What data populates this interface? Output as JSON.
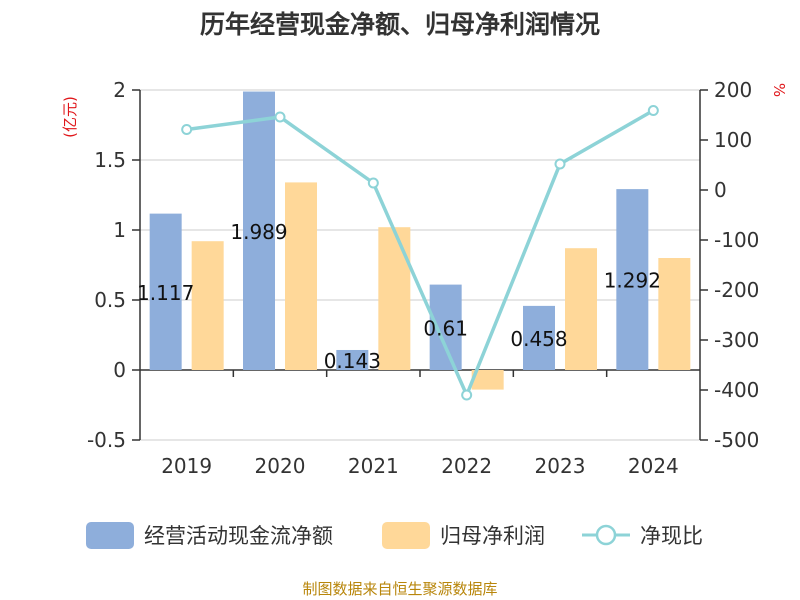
{
  "chart_data": {
    "type": "bar",
    "title": "历年经营现金净额、归母净利润情况",
    "categories": [
      "2019",
      "2020",
      "2021",
      "2022",
      "2023",
      "2024"
    ],
    "series": [
      {
        "name": "经营活动现金流净额",
        "type": "bar",
        "axis": "left",
        "values": [
          1.117,
          1.989,
          0.143,
          0.61,
          0.458,
          1.292
        ],
        "color": "#8eaedb"
      },
      {
        "name": "归母净利润",
        "type": "bar",
        "axis": "left",
        "values": [
          0.92,
          1.34,
          1.02,
          -0.14,
          0.87,
          0.8
        ],
        "color": "#ffd899"
      },
      {
        "name": "净现比",
        "type": "line",
        "axis": "right",
        "values": [
          121,
          146,
          14,
          -410,
          52,
          159
        ],
        "color": "#8dd3d7"
      }
    ],
    "data_labels": [
      "1.117",
      "1.989",
      "0.143",
      "0.61",
      "0.458",
      "1.292"
    ],
    "y_left": {
      "unit": "(亿元)",
      "min": -0.5,
      "max": 2,
      "ticks": [
        2,
        1.5,
        1,
        0.5,
        0,
        -0.5
      ],
      "tick_labels": [
        "2",
        "1.5",
        "1",
        "0.5",
        "0",
        "-0.5"
      ]
    },
    "y_right": {
      "unit": "%",
      "min": -500,
      "max": 200,
      "ticks": [
        200,
        100,
        0,
        -100,
        -200,
        -300,
        -400,
        -500
      ],
      "tick_labels": [
        "200",
        "100",
        "0",
        "-100",
        "-200",
        "-300",
        "-400",
        "-500"
      ]
    },
    "grid": true,
    "legend_position": "bottom"
  },
  "source": "制图数据来自恒生聚源数据库"
}
